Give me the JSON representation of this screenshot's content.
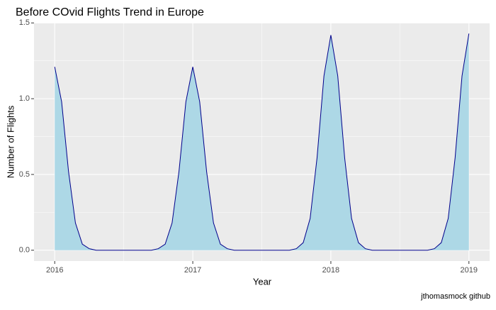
{
  "chart_data": {
    "type": "area",
    "title": "Before COvid Flights Trend in Europe",
    "x_label": "Year",
    "y_label": "Number of Flights",
    "caption": "jthomasmock github",
    "x": [
      2016,
      2016.05,
      2016.1,
      2016.15,
      2016.2,
      2016.25,
      2016.3,
      2016.35,
      2016.4,
      2016.45,
      2016.5,
      2016.55,
      2016.6,
      2016.65,
      2016.7,
      2016.75,
      2016.8,
      2016.85,
      2016.9,
      2016.95,
      2017,
      2017.05,
      2017.1,
      2017.15,
      2017.2,
      2017.25,
      2017.3,
      2017.35,
      2017.4,
      2017.45,
      2017.5,
      2017.55,
      2017.6,
      2017.65,
      2017.7,
      2017.75,
      2017.8,
      2017.85,
      2017.9,
      2017.95,
      2018,
      2018.05,
      2018.1,
      2018.15,
      2018.2,
      2018.25,
      2018.3,
      2018.35,
      2018.4,
      2018.45,
      2018.5,
      2018.55,
      2018.6,
      2018.65,
      2018.7,
      2018.75,
      2018.8,
      2018.85,
      2018.9,
      2018.95,
      2019
    ],
    "values": [
      1.21,
      0.98,
      0.52,
      0.18,
      0.04,
      0.01,
      0,
      0,
      0,
      0,
      0,
      0,
      0,
      0,
      0,
      0.01,
      0.04,
      0.18,
      0.52,
      0.98,
      1.21,
      0.98,
      0.52,
      0.18,
      0.04,
      0.01,
      0,
      0,
      0,
      0,
      0,
      0,
      0,
      0,
      0,
      0.01,
      0.05,
      0.21,
      0.61,
      1.15,
      1.42,
      1.15,
      0.61,
      0.21,
      0.05,
      0.01,
      0,
      0,
      0,
      0,
      0,
      0,
      0,
      0,
      0,
      0.01,
      0.05,
      0.21,
      0.61,
      1.15,
      1.43
    ],
    "fill": "#add8e6",
    "color": "#00008b",
    "xlim": [
      2015.85,
      2019.15
    ],
    "xticks": [
      2016,
      2017,
      2018,
      2019
    ],
    "ylim": [
      -0.0715,
      1.5015
    ],
    "yticks": [
      {
        "value": 0,
        "label": "0.0"
      },
      0.5,
      {
        "value": 1,
        "label": "1.0"
      },
      1.5
    ],
    "grid": true
  }
}
